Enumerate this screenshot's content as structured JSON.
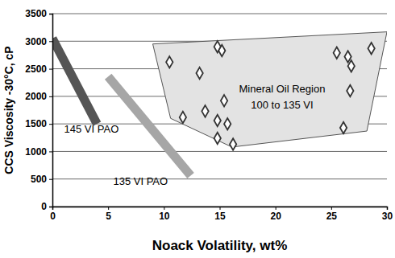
{
  "chart_data": {
    "type": "scatter",
    "x_label": "Noack Volatility, wt%",
    "y_label": "CCS Viscosity -30°C, cP",
    "xlim": [
      0,
      30
    ],
    "xticks": [
      0,
      5,
      10,
      15,
      20,
      25,
      30
    ],
    "ylim": [
      0,
      3500
    ],
    "yticks": [
      0,
      500,
      1000,
      1500,
      2000,
      2500,
      3000,
      3500
    ],
    "grid": "y",
    "series": [
      {
        "type": "area",
        "color": "#e3e3e3",
        "x": [
          9,
          30,
          28.2,
          16.1,
          10.6
        ],
        "values": [
          2950,
          3170,
          1370,
          1080,
          1600
        ]
      },
      {
        "type": "line",
        "color": "#555555",
        "line_style": "solid",
        "x": [
          0,
          4
        ],
        "values": [
          3050,
          1500
        ]
      },
      {
        "type": "line",
        "color": "#a6a6a6",
        "line_style": "solid",
        "x": [
          5,
          12.4
        ],
        "values": [
          2360,
          560
        ]
      },
      {
        "type": "scatter",
        "color": "#333333",
        "marker": "diamond",
        "x": [
          10.5,
          13.2,
          11.7,
          13.7,
          14.8,
          15.2,
          15.4,
          14.8,
          15.7,
          14.8,
          16.2,
          25.5,
          26.5,
          26.8,
          26.1,
          26.7,
          28.6
        ],
        "values": [
          2620,
          2420,
          1620,
          1730,
          2900,
          2830,
          1920,
          1560,
          1500,
          1240,
          1130,
          2790,
          2720,
          2550,
          1430,
          2100,
          2870
        ]
      }
    ],
    "annotations": [
      {
        "text": "145 VI PAO",
        "x": 3.5,
        "y": 1340
      },
      {
        "text": "135 VI PAO",
        "x": 7.9,
        "y": 395
      },
      {
        "text": "Mineral Oil Region",
        "x": 20.6,
        "y": 2070
      },
      {
        "text": "100 to 135 VI",
        "x": 20.6,
        "y": 1780
      }
    ]
  }
}
